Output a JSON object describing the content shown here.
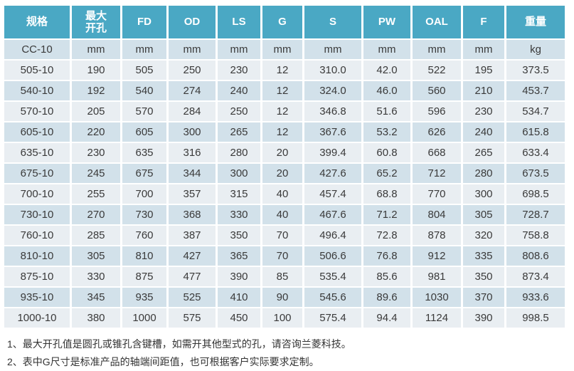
{
  "colors": {
    "header_bg": "#4aa8c4",
    "header_text": "#ffffff",
    "row_light": "#e9eef2",
    "row_dark": "#d2e1ea",
    "body_text": "#3a3a3a"
  },
  "table": {
    "columns": [
      "规格",
      "最大\n开孔",
      "FD",
      "OD",
      "LS",
      "G",
      "S",
      "PW",
      "OAL",
      "F",
      "重量"
    ],
    "units_row": [
      "CC-10",
      "mm",
      "mm",
      "mm",
      "mm",
      "mm",
      "mm",
      "mm",
      "mm",
      "mm",
      "kg"
    ],
    "rows": [
      [
        "505-10",
        "190",
        "505",
        "250",
        "230",
        "12",
        "310.0",
        "42.0",
        "522",
        "195",
        "373.5"
      ],
      [
        "540-10",
        "192",
        "540",
        "274",
        "240",
        "12",
        "324.0",
        "46.0",
        "560",
        "210",
        "453.7"
      ],
      [
        "570-10",
        "205",
        "570",
        "284",
        "250",
        "12",
        "346.8",
        "51.6",
        "596",
        "230",
        "534.7"
      ],
      [
        "605-10",
        "220",
        "605",
        "300",
        "265",
        "12",
        "367.6",
        "53.2",
        "626",
        "240",
        "615.8"
      ],
      [
        "635-10",
        "230",
        "635",
        "316",
        "280",
        "20",
        "399.4",
        "60.8",
        "668",
        "265",
        "633.4"
      ],
      [
        "675-10",
        "245",
        "675",
        "344",
        "300",
        "20",
        "427.6",
        "65.2",
        "712",
        "280",
        "673.5"
      ],
      [
        "700-10",
        "255",
        "700",
        "357",
        "315",
        "40",
        "457.4",
        "68.8",
        "770",
        "300",
        "698.5"
      ],
      [
        "730-10",
        "270",
        "730",
        "368",
        "330",
        "40",
        "467.6",
        "71.2",
        "804",
        "305",
        "728.7"
      ],
      [
        "760-10",
        "285",
        "760",
        "387",
        "350",
        "70",
        "496.4",
        "72.8",
        "878",
        "320",
        "758.8"
      ],
      [
        "810-10",
        "305",
        "810",
        "427",
        "365",
        "70",
        "506.6",
        "76.8",
        "912",
        "335",
        "808.6"
      ],
      [
        "875-10",
        "330",
        "875",
        "477",
        "390",
        "85",
        "535.4",
        "85.6",
        "981",
        "350",
        "873.4"
      ],
      [
        "935-10",
        "345",
        "935",
        "525",
        "410",
        "90",
        "545.6",
        "89.6",
        "1030",
        "370",
        "933.6"
      ],
      [
        "1000-10",
        "380",
        "1000",
        "575",
        "450",
        "100",
        "575.4",
        "94.4",
        "1124",
        "390",
        "998.5"
      ]
    ]
  },
  "footnotes": [
    "1、最大开孔值是圆孔或锥孔含键槽，如需开其他型式的孔，请咨询兰菱科技。",
    "2、表中G尺寸是标准产品的轴端间距值，也可根据客户实际要求定制。"
  ]
}
